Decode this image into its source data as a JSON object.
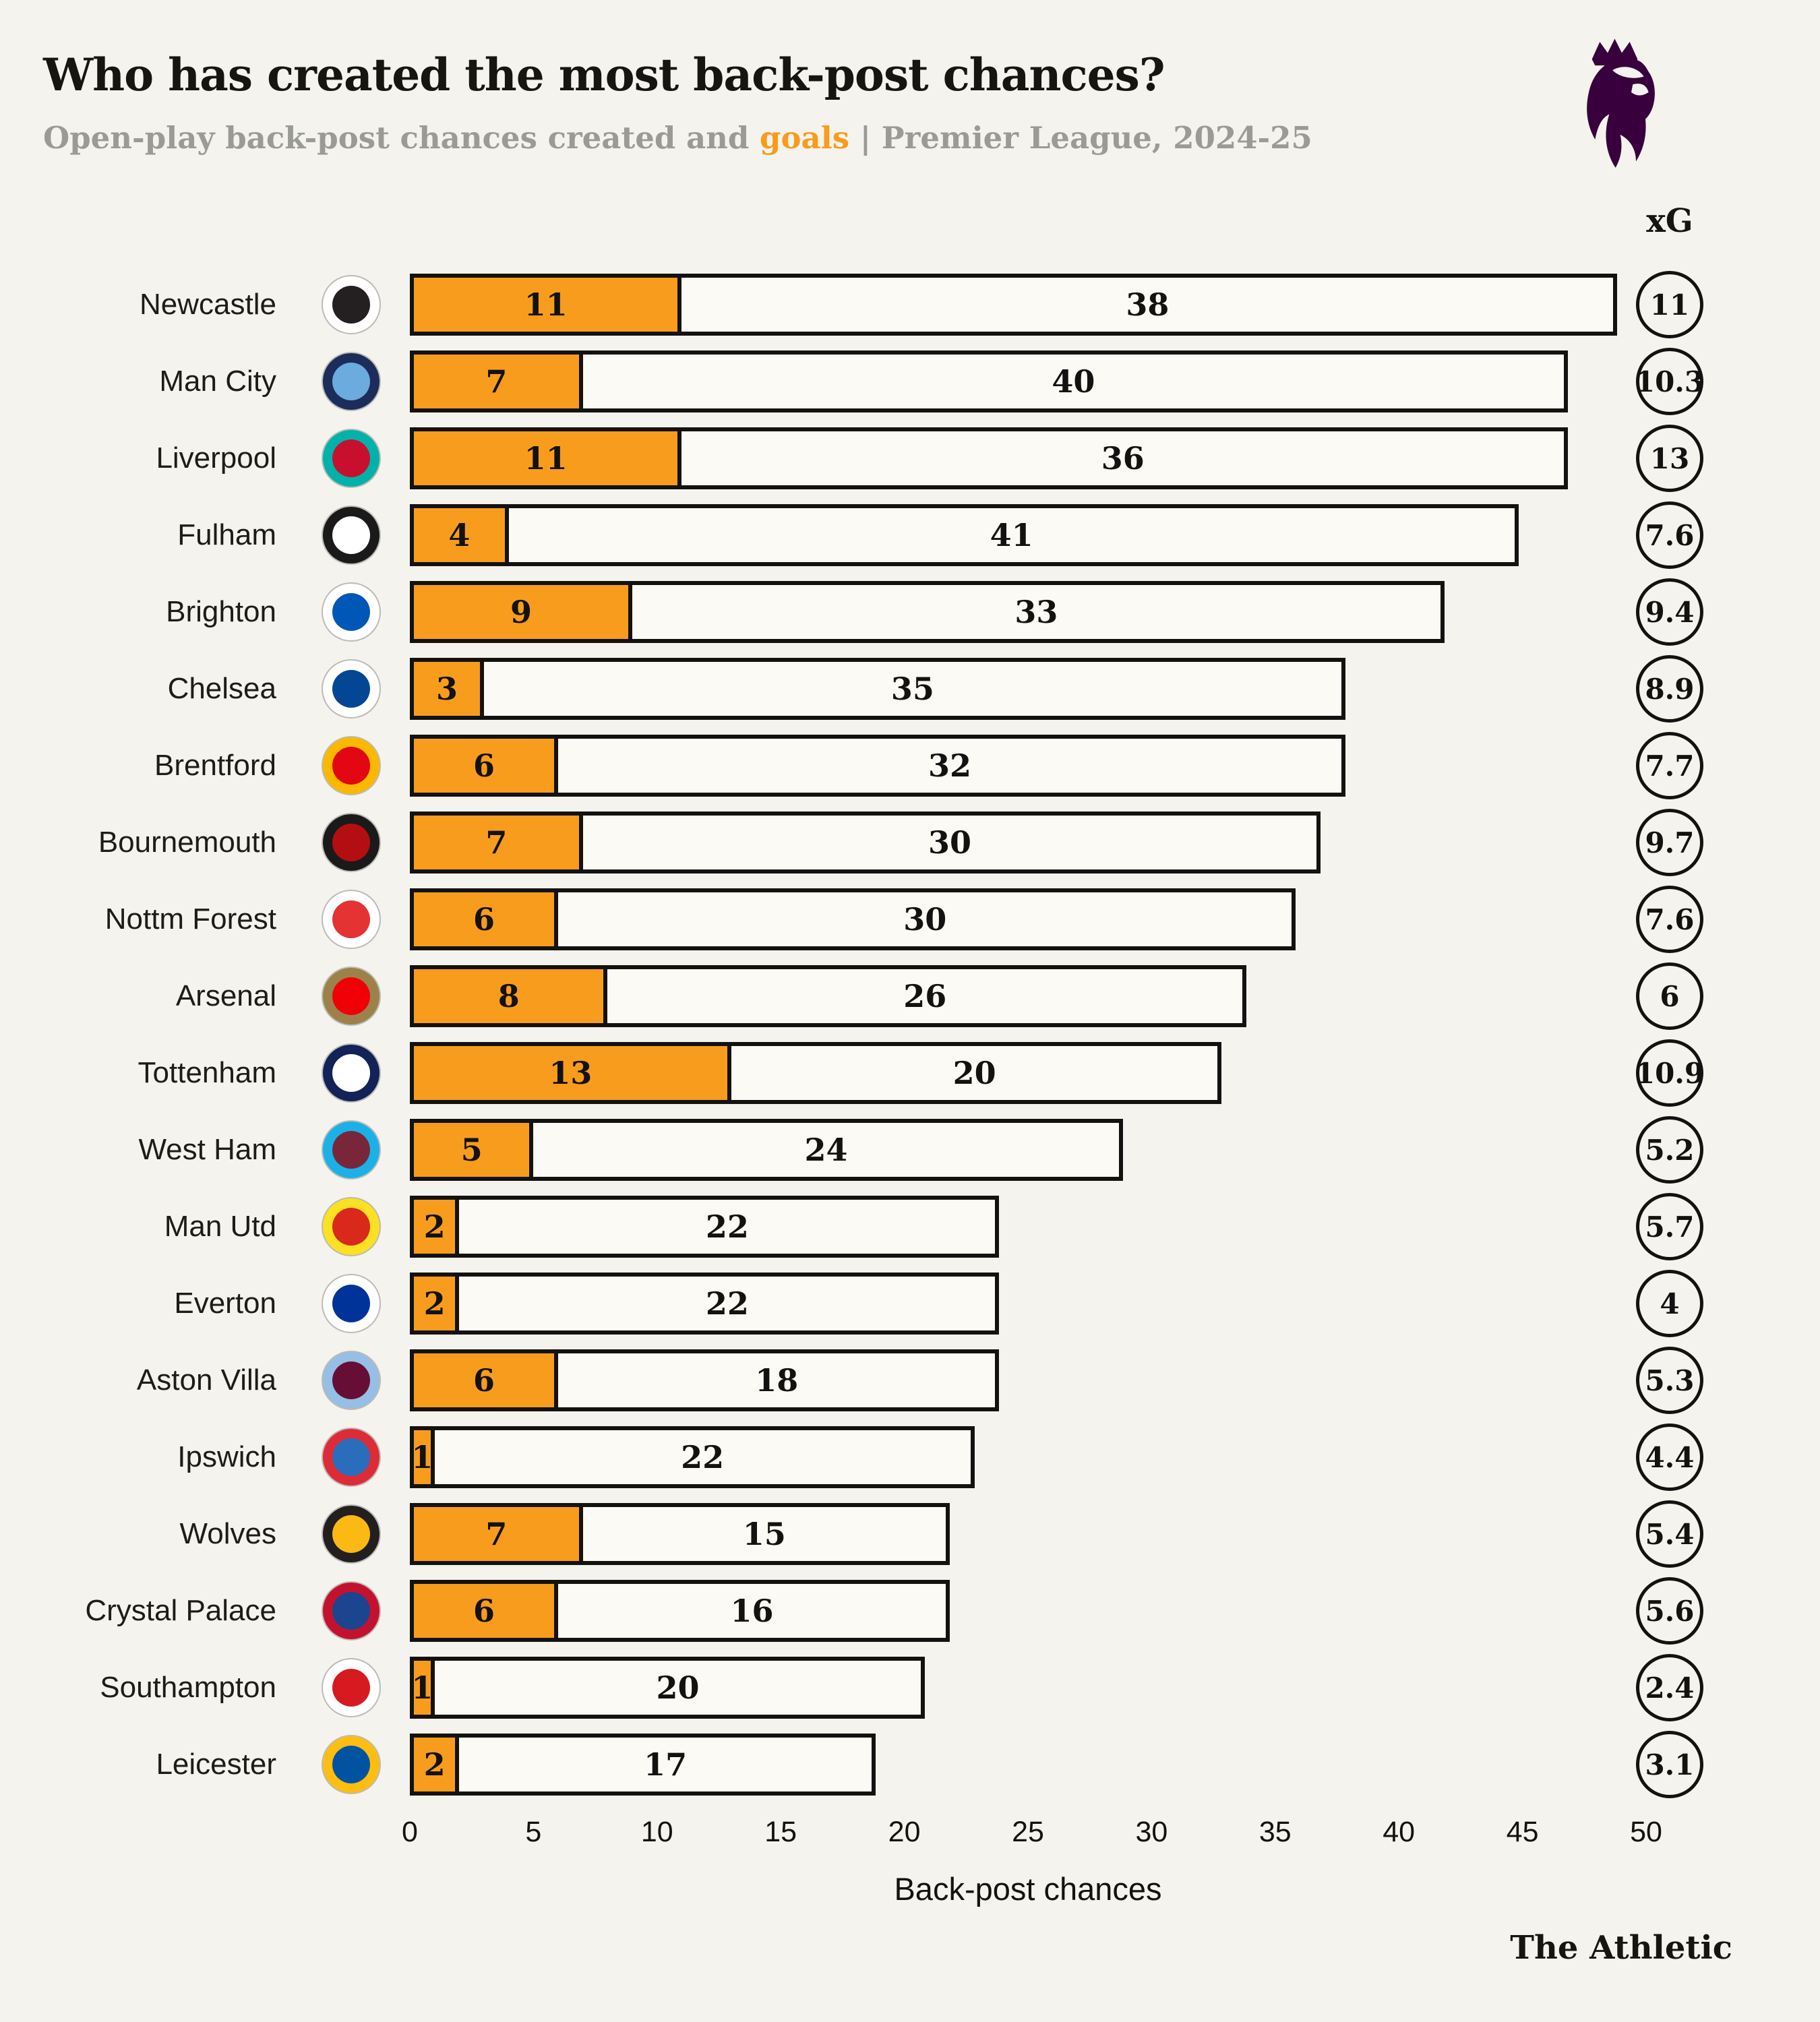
{
  "header": {
    "title": "Who has created the most back-post chances?",
    "subtitle_prefix": "Open-play back-post chances created and ",
    "subtitle_highlight": "goals",
    "subtitle_suffix": " | Premier League, 2024-25",
    "league_logo_icon": "premier-league-lion"
  },
  "xg_column_label": "xG",
  "footer": {
    "brand": "The Athletic"
  },
  "colors": {
    "goals_orange": "#F79C1D",
    "bar_fill": "#FBFAF4",
    "outline": "#141210",
    "background": "#F4F3ED",
    "subtitle_gray": "#9B9B95",
    "pl_purple": "#38003C"
  },
  "chart_data": {
    "type": "bar",
    "orientation": "horizontal",
    "stacked": true,
    "title": "Who has created the most back-post chances?",
    "subtitle": "Open-play back-post chances created and goals | Premier League, 2024-25",
    "xlabel": "Back-post chances",
    "xlim": [
      0,
      50
    ],
    "ticks": [
      0,
      5,
      10,
      15,
      20,
      25,
      30,
      35,
      40,
      45,
      50
    ],
    "legend": {
      "orange_segment": "goals",
      "light_segment": "chances created",
      "circle": "xG"
    },
    "teams": [
      {
        "name": "Newcastle",
        "goals": 11,
        "chances": 38,
        "xg": "11",
        "crest": {
          "primary": "#241F20",
          "secondary": "#FFFFFF"
        }
      },
      {
        "name": "Man City",
        "goals": 7,
        "chances": 40,
        "xg": "10.3",
        "crest": {
          "primary": "#6CABDD",
          "secondary": "#1C2C5B"
        }
      },
      {
        "name": "Liverpool",
        "goals": 11,
        "chances": 36,
        "xg": "13",
        "crest": {
          "primary": "#C8102E",
          "secondary": "#00B2A9"
        }
      },
      {
        "name": "Fulham",
        "goals": 4,
        "chances": 41,
        "xg": "7.6",
        "crest": {
          "primary": "#FFFFFF",
          "secondary": "#1A1A1A"
        }
      },
      {
        "name": "Brighton",
        "goals": 9,
        "chances": 33,
        "xg": "9.4",
        "crest": {
          "primary": "#0057B8",
          "secondary": "#FFFFFF"
        }
      },
      {
        "name": "Chelsea",
        "goals": 3,
        "chances": 35,
        "xg": "8.9",
        "crest": {
          "primary": "#034694",
          "secondary": "#FFFFFF"
        }
      },
      {
        "name": "Brentford",
        "goals": 6,
        "chances": 32,
        "xg": "7.7",
        "crest": {
          "primary": "#E30613",
          "secondary": "#FBB800"
        }
      },
      {
        "name": "Bournemouth",
        "goals": 7,
        "chances": 30,
        "xg": "9.7",
        "crest": {
          "primary": "#B50E12",
          "secondary": "#1A1A1A"
        }
      },
      {
        "name": "Nottm Forest",
        "goals": 6,
        "chances": 30,
        "xg": "7.6",
        "crest": {
          "primary": "#E53233",
          "secondary": "#FFFFFF"
        }
      },
      {
        "name": "Arsenal",
        "goals": 8,
        "chances": 26,
        "xg": "6",
        "crest": {
          "primary": "#EF0107",
          "secondary": "#9C824A"
        }
      },
      {
        "name": "Tottenham",
        "goals": 13,
        "chances": 20,
        "xg": "10.9",
        "crest": {
          "primary": "#FFFFFF",
          "secondary": "#132257"
        }
      },
      {
        "name": "West Ham",
        "goals": 5,
        "chances": 24,
        "xg": "5.2",
        "crest": {
          "primary": "#7A263A",
          "secondary": "#1BB1E7"
        }
      },
      {
        "name": "Man Utd",
        "goals": 2,
        "chances": 22,
        "xg": "5.7",
        "crest": {
          "primary": "#DA291C",
          "secondary": "#FBE122"
        }
      },
      {
        "name": "Everton",
        "goals": 2,
        "chances": 22,
        "xg": "4",
        "crest": {
          "primary": "#003399",
          "secondary": "#FFFFFF"
        }
      },
      {
        "name": "Aston Villa",
        "goals": 6,
        "chances": 18,
        "xg": "5.3",
        "crest": {
          "primary": "#670E36",
          "secondary": "#95BFE5"
        }
      },
      {
        "name": "Ipswich",
        "goals": 1,
        "chances": 22,
        "xg": "4.4",
        "crest": {
          "primary": "#2A6EBB",
          "secondary": "#DE2C37"
        }
      },
      {
        "name": "Wolves",
        "goals": 7,
        "chances": 15,
        "xg": "5.4",
        "crest": {
          "primary": "#FDB913",
          "secondary": "#231F20"
        }
      },
      {
        "name": "Crystal Palace",
        "goals": 6,
        "chances": 16,
        "xg": "5.6",
        "crest": {
          "primary": "#1B458F",
          "secondary": "#C4122E"
        }
      },
      {
        "name": "Southampton",
        "goals": 1,
        "chances": 20,
        "xg": "2.4",
        "crest": {
          "primary": "#D71920",
          "secondary": "#FFFFFF"
        }
      },
      {
        "name": "Leicester",
        "goals": 2,
        "chances": 17,
        "xg": "3.1",
        "crest": {
          "primary": "#0053A0",
          "secondary": "#FDBE11"
        }
      }
    ]
  }
}
